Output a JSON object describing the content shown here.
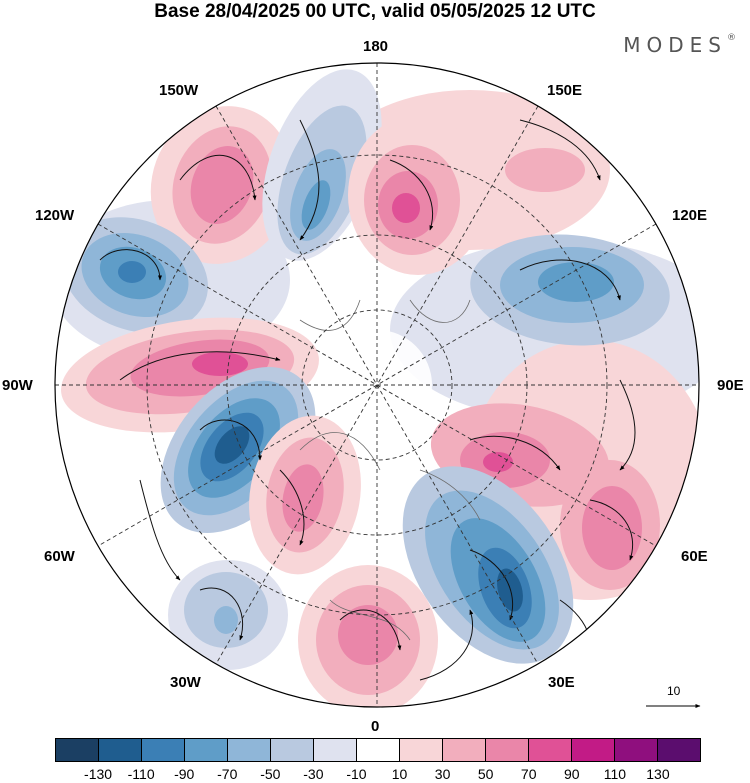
{
  "title": "Base 28/04/2025 00 UTC, valid 05/05/2025 12 UTC",
  "brand": "MODES",
  "brand_mark": "®",
  "map": {
    "longitude_labels": {
      "top": "180",
      "bottom": "0",
      "left": "90W",
      "right": "90E",
      "upper_left_1": "150W",
      "upper_left_2": "120W",
      "upper_right_1": "150E",
      "upper_right_2": "120E",
      "lower_left_1": "60W",
      "lower_left_2": "30W",
      "lower_right_1": "60E",
      "lower_right_2": "30E"
    },
    "reference_vector_label": "10",
    "anomaly_centers": [
      {
        "sign": "positive",
        "value": 70,
        "lon_label": "150W"
      },
      {
        "sign": "negative",
        "value": -70,
        "lon_label": "180"
      },
      {
        "sign": "positive",
        "value": 90,
        "lon_label": "165E"
      },
      {
        "sign": "negative",
        "value": -70,
        "lon_label": "120W"
      },
      {
        "sign": "negative",
        "value": -70,
        "lon_label": "120E"
      },
      {
        "sign": "positive",
        "value": 90,
        "lon_label": "105W"
      },
      {
        "sign": "negative",
        "value": -110,
        "lon_label": "75W"
      },
      {
        "sign": "positive",
        "value": 70,
        "lon_label": "80E"
      },
      {
        "sign": "positive",
        "value": 70,
        "lon_label": "60E"
      },
      {
        "sign": "positive",
        "value": 70,
        "lon_label": "45W"
      },
      {
        "sign": "negative",
        "value": -90,
        "lon_label": "30E"
      },
      {
        "sign": "positive",
        "value": 70,
        "lon_label": "0"
      },
      {
        "sign": "negative",
        "value": -50,
        "lon_label": "30W"
      }
    ]
  },
  "colorbar": {
    "colors": [
      "#1b3f63",
      "#1f5d8f",
      "#3b7fb5",
      "#5f9dc8",
      "#8fb6d8",
      "#b9c9e0",
      "#dfe2ef",
      "#ffffff",
      "#f8d6d8",
      "#f2aebd",
      "#ea86a9",
      "#e05196",
      "#c21b86",
      "#8f0f7e",
      "#5b0d6e"
    ],
    "ticks": [
      "-130",
      "-110",
      "-90",
      "-70",
      "-50",
      "-30",
      "-10",
      "10",
      "30",
      "50",
      "70",
      "90",
      "110",
      "130"
    ]
  }
}
